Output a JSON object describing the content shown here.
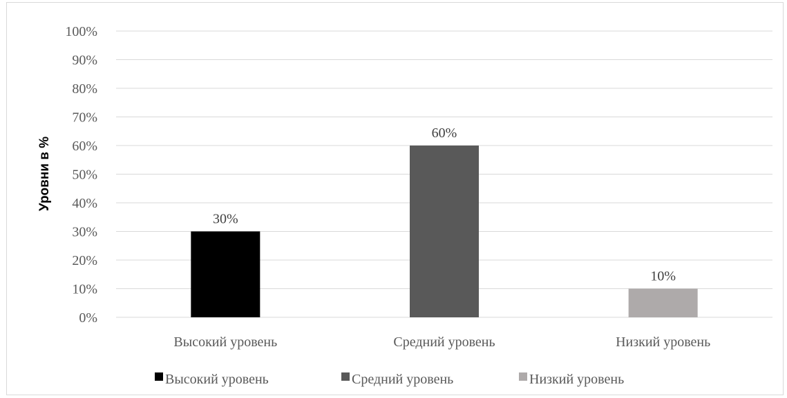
{
  "chart_data": {
    "type": "bar",
    "title": "",
    "xlabel": "",
    "ylabel": "Уровни в %",
    "categories": [
      "Высокий уровень",
      "Средний уровень",
      "Низкий уровень"
    ],
    "values": [
      30,
      60,
      10
    ],
    "value_labels": [
      "30%",
      "60%",
      "10%"
    ],
    "ylim": [
      0,
      100
    ],
    "yticks": [
      0,
      10,
      20,
      30,
      40,
      50,
      60,
      70,
      80,
      90,
      100
    ],
    "ytick_labels": [
      "0%",
      "10%",
      "20%",
      "30%",
      "40%",
      "50%",
      "60%",
      "70%",
      "80%",
      "90%",
      "100%"
    ],
    "grid": true,
    "legend_position": "bottom",
    "colors": [
      "#000000",
      "#595959",
      "#aeaaaa"
    ],
    "gridline_color": "#d9d9d9",
    "axis_color": "#d9d9d9"
  }
}
